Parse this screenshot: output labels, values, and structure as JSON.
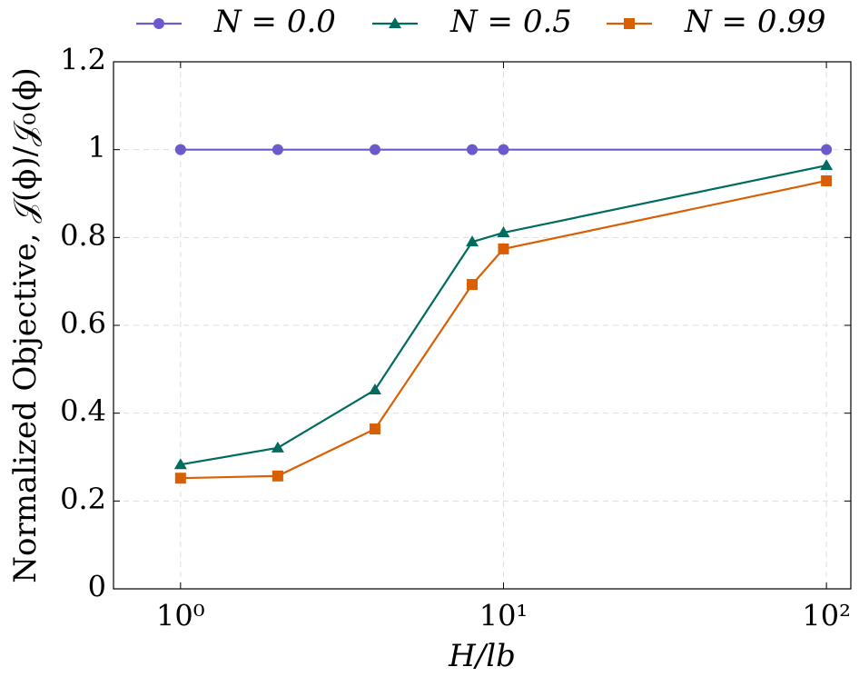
{
  "chart_data": {
    "type": "line",
    "x_label": "H/lb",
    "y_label": "Normalized Objective, 𝒥(ϕ)/𝒥₀(ϕ)",
    "x": [
      1,
      2,
      4,
      8,
      10,
      100
    ],
    "xscale": "log",
    "xlim": [
      0.62,
      119
    ],
    "xticks": [
      {
        "value": 1,
        "label": "10⁰"
      },
      {
        "value": 10,
        "label": "10¹"
      },
      {
        "value": 100,
        "label": "10²"
      }
    ],
    "ylim": [
      0,
      1.2
    ],
    "yticks": [
      0,
      0.2,
      0.4,
      0.6,
      0.8,
      1,
      1.2
    ],
    "grid": true,
    "legend": "top",
    "series": [
      {
        "name": "N = 0.0",
        "color": "#6a5acd",
        "marker": "circle",
        "values": [
          1,
          1,
          1,
          1,
          1,
          1
        ]
      },
      {
        "name": "N = 0.5",
        "color": "#006b5f",
        "marker": "triangle",
        "values": [
          0.283,
          0.321,
          0.453,
          0.79,
          0.811,
          0.964
        ]
      },
      {
        "name": "N = 0.99",
        "color": "#d95f02",
        "marker": "square",
        "values": [
          0.252,
          0.257,
          0.364,
          0.693,
          0.774,
          0.929
        ]
      }
    ]
  }
}
